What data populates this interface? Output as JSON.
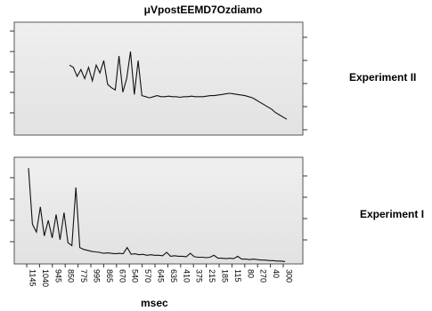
{
  "chart_data": [
    {
      "type": "line",
      "title": "μVpostEEMD7Ozdiamo",
      "panel_label": "Experiment II",
      "xlabel": "",
      "grid": false,
      "x_direction": "descending",
      "x_range_msec": [
        1145,
        300
      ],
      "series": [
        {
          "values": [
            0.62,
            0.6,
            0.52,
            0.58,
            0.5,
            0.6,
            0.48,
            0.62,
            0.55,
            0.66,
            0.45,
            0.42,
            0.4,
            0.7,
            0.38,
            0.5,
            0.74,
            0.36,
            0.66,
            0.35,
            0.34,
            0.33,
            0.34,
            0.35,
            0.34,
            0.34,
            0.345,
            0.34,
            0.34,
            0.335,
            0.34,
            0.34,
            0.345,
            0.34,
            0.34,
            0.34,
            0.345,
            0.35,
            0.35,
            0.355,
            0.36,
            0.365,
            0.37,
            0.365,
            0.36,
            0.355,
            0.35,
            0.34,
            0.33,
            0.31,
            0.29,
            0.27,
            0.25,
            0.23,
            0.2,
            0.18,
            0.16,
            0.14
          ]
        }
      ]
    },
    {
      "type": "line",
      "title": "",
      "panel_label": "Experiment I",
      "xlabel": "msec",
      "grid": false,
      "x_direction": "descending",
      "x_tick_labels": [
        "1145",
        "1040",
        "945",
        "850",
        "775",
        "995",
        "865",
        "670",
        "540",
        "570",
        "645",
        "635",
        "410",
        "375",
        "215",
        "185",
        "115",
        "80",
        "270",
        "40",
        "300"
      ],
      "series": [
        {
          "values": [
            0.98,
            0.4,
            0.32,
            0.58,
            0.28,
            0.44,
            0.26,
            0.5,
            0.24,
            0.52,
            0.21,
            0.18,
            0.78,
            0.16,
            0.14,
            0.13,
            0.12,
            0.115,
            0.11,
            0.1,
            0.105,
            0.1,
            0.095,
            0.1,
            0.095,
            0.16,
            0.09,
            0.095,
            0.085,
            0.09,
            0.08,
            0.085,
            0.08,
            0.08,
            0.075,
            0.11,
            0.07,
            0.075,
            0.07,
            0.07,
            0.065,
            0.1,
            0.065,
            0.06,
            0.06,
            0.055,
            0.06,
            0.08,
            0.05,
            0.05,
            0.045,
            0.05,
            0.045,
            0.07,
            0.04,
            0.04,
            0.035,
            0.04,
            0.035,
            0.03,
            0.03,
            0.025,
            0.025,
            0.02,
            0.02,
            0.015
          ]
        }
      ]
    }
  ]
}
